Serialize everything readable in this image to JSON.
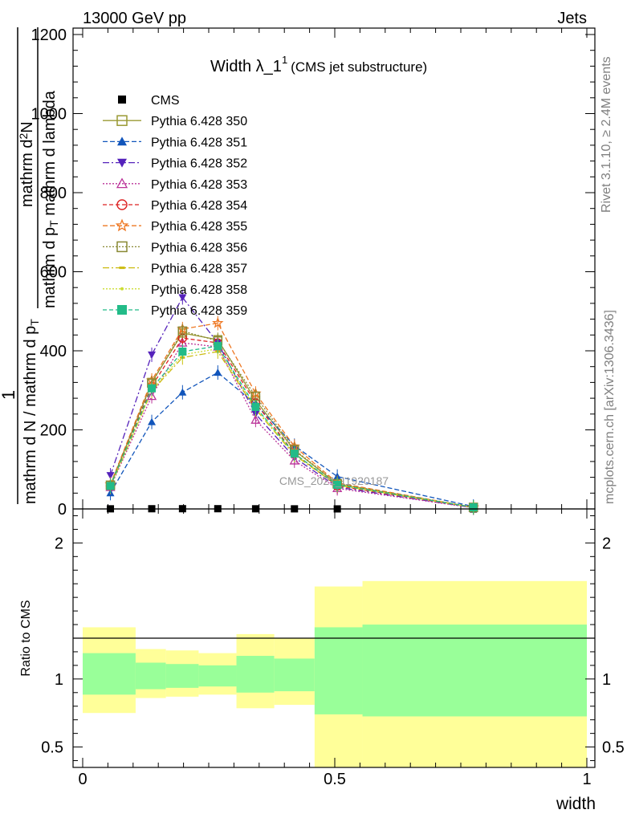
{
  "header": {
    "left": "13000 GeV pp",
    "right": "Jets"
  },
  "side": {
    "rivet": "Rivet 3.1.10, ≥ 2.4M events",
    "mcplots": "mcplots.cern.ch [arXiv:1306.3436]"
  },
  "colors": {
    "ratio_inner": "#99ff99",
    "ratio_outer": "#ffff99"
  },
  "chart_data": [
    {
      "type": "line",
      "title": "Width λ_1",
      "title_sup": "1",
      "title_suffix": "(CMS jet substructure)",
      "ylabel_num": "1",
      "ylabel_den": "mathrm d N / mathrm d p",
      "ylabel_den_sub": "T",
      "ylabel_den2": "mathrm d p",
      "ylabel_den2_sub": "T",
      "ylabel_den3": "mathrm d lambda",
      "ylabel_top": "mathrm d",
      "ylabel_top_sup": "2",
      "ylabel_top2": "N",
      "watermark": "CMS_2021_I1920187",
      "xlim": [
        0,
        1
      ],
      "ylim": [
        0,
        1200
      ],
      "yticks": [
        "0",
        "200",
        "400",
        "600",
        "800",
        "1000",
        "1200"
      ],
      "x": [
        0.055,
        0.137,
        0.198,
        0.268,
        0.343,
        0.42,
        0.505,
        0.775
      ],
      "series": [
        {
          "name": "CMS",
          "color": "#000000",
          "marker": "square",
          "dash": "",
          "values": [
            0.3,
            0.5,
            0.6,
            0.6,
            0.4,
            0.25,
            0.1,
            0.02
          ]
        },
        {
          "name": "Pythia 6.428 350",
          "color": "#999933",
          "marker": "opensquare",
          "dash": "",
          "values": [
            60,
            320,
            445,
            428,
            275,
            148,
            63,
            4
          ]
        },
        {
          "name": "Pythia 6.428 351",
          "color": "#1155bb",
          "marker": "triangle",
          "dash": "6,3",
          "values": [
            40,
            220,
            295,
            345,
            265,
            160,
            82,
            6
          ]
        },
        {
          "name": "Pythia 6.428 352",
          "color": "#5522bb",
          "marker": "invtriangle",
          "dash": "8,3,2,3",
          "values": [
            85,
            390,
            535,
            420,
            240,
            130,
            55,
            3
          ]
        },
        {
          "name": "Pythia 6.428 353",
          "color": "#bb3399",
          "marker": "opentriangle",
          "dash": "2,2",
          "values": [
            55,
            285,
            420,
            410,
            225,
            122,
            52,
            3
          ]
        },
        {
          "name": "Pythia 6.428 354",
          "color": "#dd2222",
          "marker": "opencircle",
          "dash": "5,3",
          "values": [
            58,
            310,
            432,
            420,
            268,
            140,
            58,
            4
          ]
        },
        {
          "name": "Pythia 6.428 355",
          "color": "#ee7722",
          "marker": "openstar",
          "dash": "6,3",
          "values": [
            62,
            325,
            455,
            470,
            292,
            158,
            66,
            4
          ]
        },
        {
          "name": "Pythia 6.428 356",
          "color": "#888833",
          "marker": "opensquare",
          "dash": "2,2",
          "values": [
            60,
            318,
            450,
            425,
            285,
            150,
            64,
            4
          ]
        },
        {
          "name": "Pythia 6.428 357",
          "color": "#ccbb11",
          "marker": "dash",
          "dash": "8,3,2,3",
          "values": [
            56,
            298,
            383,
            398,
            252,
            136,
            60,
            4
          ]
        },
        {
          "name": "Pythia 6.428 358",
          "color": "#ccdd33",
          "marker": "dot",
          "dash": "2,2",
          "values": [
            57,
            300,
            390,
            405,
            255,
            138,
            61,
            4
          ]
        },
        {
          "name": "Pythia 6.428 359",
          "color": "#22bb88",
          "marker": "filledsquare",
          "dash": "5,3",
          "values": [
            58,
            305,
            398,
            412,
            258,
            140,
            61,
            4
          ]
        }
      ]
    },
    {
      "type": "area",
      "ylabel": "Ratio to CMS",
      "xlabel": "width",
      "xlim": [
        0,
        1
      ],
      "ylim": [
        0.35,
        2.25
      ],
      "yticks": [
        "0.5",
        "1",
        "2"
      ],
      "xticks": [
        "0",
        "0.5",
        "1"
      ],
      "bins": [
        {
          "lo": 0.0,
          "hi": 0.105,
          "inner": [
            0.885,
            1.19
          ],
          "outer": [
            0.75,
            1.38
          ]
        },
        {
          "lo": 0.105,
          "hi": 0.165,
          "inner": [
            0.925,
            1.12
          ],
          "outer": [
            0.86,
            1.22
          ]
        },
        {
          "lo": 0.165,
          "hi": 0.23,
          "inner": [
            0.935,
            1.11
          ],
          "outer": [
            0.87,
            1.21
          ]
        },
        {
          "lo": 0.23,
          "hi": 0.305,
          "inner": [
            0.945,
            1.1
          ],
          "outer": [
            0.885,
            1.19
          ]
        },
        {
          "lo": 0.305,
          "hi": 0.38,
          "inner": [
            0.9,
            1.17
          ],
          "outer": [
            0.785,
            1.33
          ]
        },
        {
          "lo": 0.38,
          "hi": 0.46,
          "inner": [
            0.91,
            1.15
          ],
          "outer": [
            0.81,
            1.3
          ]
        },
        {
          "lo": 0.46,
          "hi": 0.555,
          "inner": [
            0.74,
            1.38
          ],
          "outer": [
            0.35,
            1.68
          ]
        },
        {
          "lo": 0.555,
          "hi": 1.0,
          "inner": [
            0.725,
            1.4
          ],
          "outer": [
            0.35,
            1.72
          ]
        }
      ]
    }
  ]
}
